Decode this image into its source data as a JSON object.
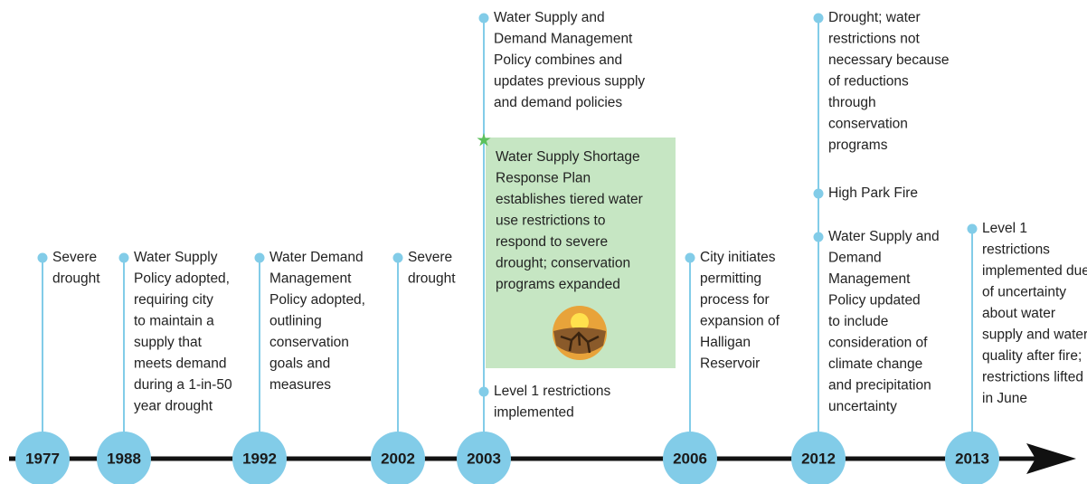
{
  "timeline": {
    "entries": [
      {
        "year": "1977",
        "events": [
          {
            "lines": [
              "Severe",
              "drought"
            ]
          }
        ]
      },
      {
        "year": "1988",
        "events": [
          {
            "lines": [
              "Water Supply",
              "Policy adopted,",
              "requiring city",
              "to maintain a",
              "supply that",
              "meets demand",
              "during a 1-in-50",
              "year drought"
            ]
          }
        ]
      },
      {
        "year": "1992",
        "events": [
          {
            "lines": [
              "Water Demand",
              "Management",
              "Policy adopted,",
              "outlining",
              "conservation",
              "goals and",
              "measures"
            ]
          }
        ]
      },
      {
        "year": "2002",
        "events": [
          {
            "lines": [
              "Severe",
              "drought"
            ]
          }
        ]
      },
      {
        "year": "2003",
        "events": [
          {
            "lines": [
              "Water Supply and",
              "Demand Management",
              "Policy combines and",
              "updates previous supply",
              "and demand policies"
            ]
          },
          {
            "lines": [
              "Water Supply Shortage",
              "Response Plan",
              "establishes tiered water",
              "use restrictions to",
              "respond to severe",
              "drought; conservation",
              "programs expanded"
            ]
          },
          {
            "lines": [
              "Level 1 restrictions",
              "implemented"
            ]
          }
        ]
      },
      {
        "year": "2006",
        "events": [
          {
            "lines": [
              "City initiates",
              "permitting",
              "process for",
              "expansion of",
              "Halligan",
              "Reservoir"
            ]
          }
        ]
      },
      {
        "year": "2012",
        "events": [
          {
            "lines": [
              "Drought; water",
              "restrictions not",
              "necessary because",
              "of reductions",
              "through",
              "conservation",
              "programs"
            ]
          },
          {
            "lines": [
              "High Park Fire"
            ]
          },
          {
            "lines": [
              "Water Supply and",
              "Demand",
              "Management",
              "Policy updated",
              "to include",
              "consideration of",
              "climate change",
              "and precipitation",
              "uncertainty"
            ]
          }
        ]
      },
      {
        "year": "2013",
        "events": [
          {
            "lines": [
              "Level 1",
              "restrictions",
              "implemented due",
              "of uncertainty",
              "about water",
              "supply and water",
              "quality after fire;",
              "restrictions lifted",
              "in June"
            ]
          }
        ]
      }
    ]
  }
}
